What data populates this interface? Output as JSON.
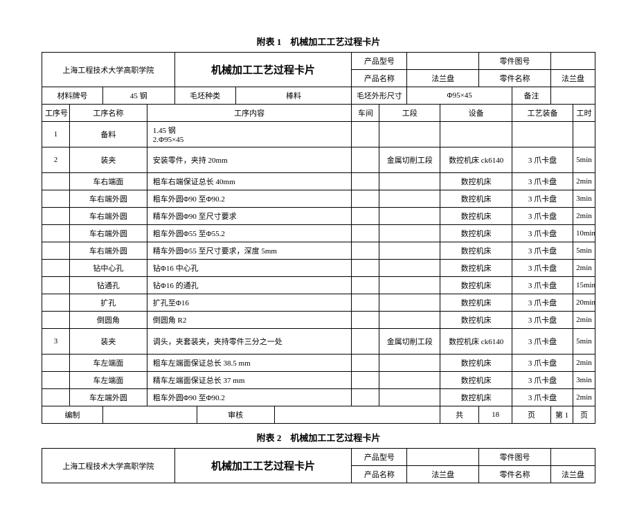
{
  "t1": {
    "caption": "附表 1　机械加工工艺过程卡片",
    "school": "上海工程技术大学高职学院",
    "doc_title": "机械加工工艺过程卡片",
    "h": {
      "prod_model_lbl": "产品型号",
      "prod_model": "",
      "part_no_lbl": "零件图号",
      "part_no": "",
      "prod_name_lbl": "产品名称",
      "prod_name": "法兰盘",
      "part_name_lbl": "零件名称",
      "part_name": "法兰盘",
      "mat_lbl": "材料牌号",
      "mat": "45 钢",
      "blank_type_lbl": "毛坯种类",
      "blank_type": "棒料",
      "blank_dim_lbl": "毛坯外形尺寸",
      "blank_dim": "Φ95×45",
      "remark_lbl": "备注"
    },
    "cols": {
      "seq": "工序号",
      "name": "工序名称",
      "content": "工序内容",
      "shop": "车间",
      "section": "工段",
      "equip": "设备",
      "tool": "工艺装备",
      "time": "工时"
    },
    "rows": [
      {
        "seq": "1",
        "name": "备料",
        "content": "1.45 钢\n2.Φ95×45",
        "shop": "",
        "section": "",
        "equip": "",
        "tool": "",
        "time": ""
      },
      {
        "seq": "2",
        "name": "装夹",
        "content": "安装零件，夹持 20mm",
        "shop": "",
        "section": "金属切削工段",
        "equip": "数控机床 ck6140",
        "tool": "3 爪卡盘",
        "time": "5min"
      },
      {
        "seq": "",
        "name": "车右端面",
        "content": "粗车右端保证总长 40mm",
        "shop": "",
        "section": "",
        "equip": "数控机床",
        "tool": "3 爪卡盘",
        "time": "2min"
      },
      {
        "seq": "",
        "name": "车右端外圆",
        "content": "粗车外圆Φ90 至Φ90.2",
        "shop": "",
        "section": "",
        "equip": "数控机床",
        "tool": "3 爪卡盘",
        "time": "3min"
      },
      {
        "seq": "",
        "name": "车右端外圆",
        "content": "精车外圆Φ90 至尺寸要求",
        "shop": "",
        "section": "",
        "equip": "数控机床",
        "tool": "3 爪卡盘",
        "time": "2min"
      },
      {
        "seq": "",
        "name": "车右端外圆",
        "content": "粗车外圆Φ55 至Φ55.2",
        "shop": "",
        "section": "",
        "equip": "数控机床",
        "tool": "3 爪卡盘",
        "time": "10min"
      },
      {
        "seq": "",
        "name": "车右端外圆",
        "content": "精车外圆Φ55 至尺寸要求，深度 5mm",
        "shop": "",
        "section": "",
        "equip": "数控机床",
        "tool": "3 爪卡盘",
        "time": "5min"
      },
      {
        "seq": "",
        "name": "钻中心孔",
        "content": "钻Φ16 中心孔",
        "shop": "",
        "section": "",
        "equip": "数控机床",
        "tool": "3 爪卡盘",
        "time": "2min"
      },
      {
        "seq": "",
        "name": "钻通孔",
        "content": "钻Φ16 的通孔",
        "shop": "",
        "section": "",
        "equip": "数控机床",
        "tool": "3 爪卡盘",
        "time": "15min"
      },
      {
        "seq": "",
        "name": "扩孔",
        "content": "扩孔至Φ16",
        "shop": "",
        "section": "",
        "equip": "数控机床",
        "tool": "3 爪卡盘",
        "time": "20min"
      },
      {
        "seq": "",
        "name": "倒圆角",
        "content": "倒圆角 R2",
        "shop": "",
        "section": "",
        "equip": "数控机床",
        "tool": "3 爪卡盘",
        "time": "2min"
      },
      {
        "seq": "3",
        "name": "装夹",
        "content": "调头，夹套装夹，夹持零件三分之一处",
        "shop": "",
        "section": "金属切削工段",
        "equip": "数控机床 ck6140",
        "tool": "3 爪卡盘",
        "time": "5min"
      },
      {
        "seq": "",
        "name": "车左端面",
        "content": "粗车左端面保证总长 38.5 mm",
        "shop": "",
        "section": "",
        "equip": "数控机床",
        "tool": "3 爪卡盘",
        "time": "2min"
      },
      {
        "seq": "",
        "name": "车左端面",
        "content": "精车左端面保证总长 37 mm",
        "shop": "",
        "section": "",
        "equip": "数控机床",
        "tool": "3 爪卡盘",
        "time": "3min"
      },
      {
        "seq": "",
        "name": "车左端外圆",
        "content": "粗车外圆Φ90 至Φ90.2",
        "shop": "",
        "section": "",
        "equip": "数控机床",
        "tool": "3 爪卡盘",
        "time": "2min"
      }
    ],
    "footer": {
      "compile": "编制",
      "review": "审核",
      "pages_a": "共",
      "pages_n": "18",
      "pages_b": "页",
      "page_a": "第",
      "page_n": "1",
      "page_b": "页"
    }
  },
  "t2": {
    "caption": "附表 2　机械加工工艺过程卡片",
    "school": "上海工程技术大学高职学院",
    "doc_title": "机械加工工艺过程卡片",
    "h": {
      "prod_model_lbl": "产品型号",
      "prod_model": "",
      "part_no_lbl": "零件图号",
      "part_no": "",
      "prod_name_lbl": "产品名称",
      "prod_name": "法兰盘",
      "part_name_lbl": "零件名称",
      "part_name": "法兰盘"
    }
  }
}
